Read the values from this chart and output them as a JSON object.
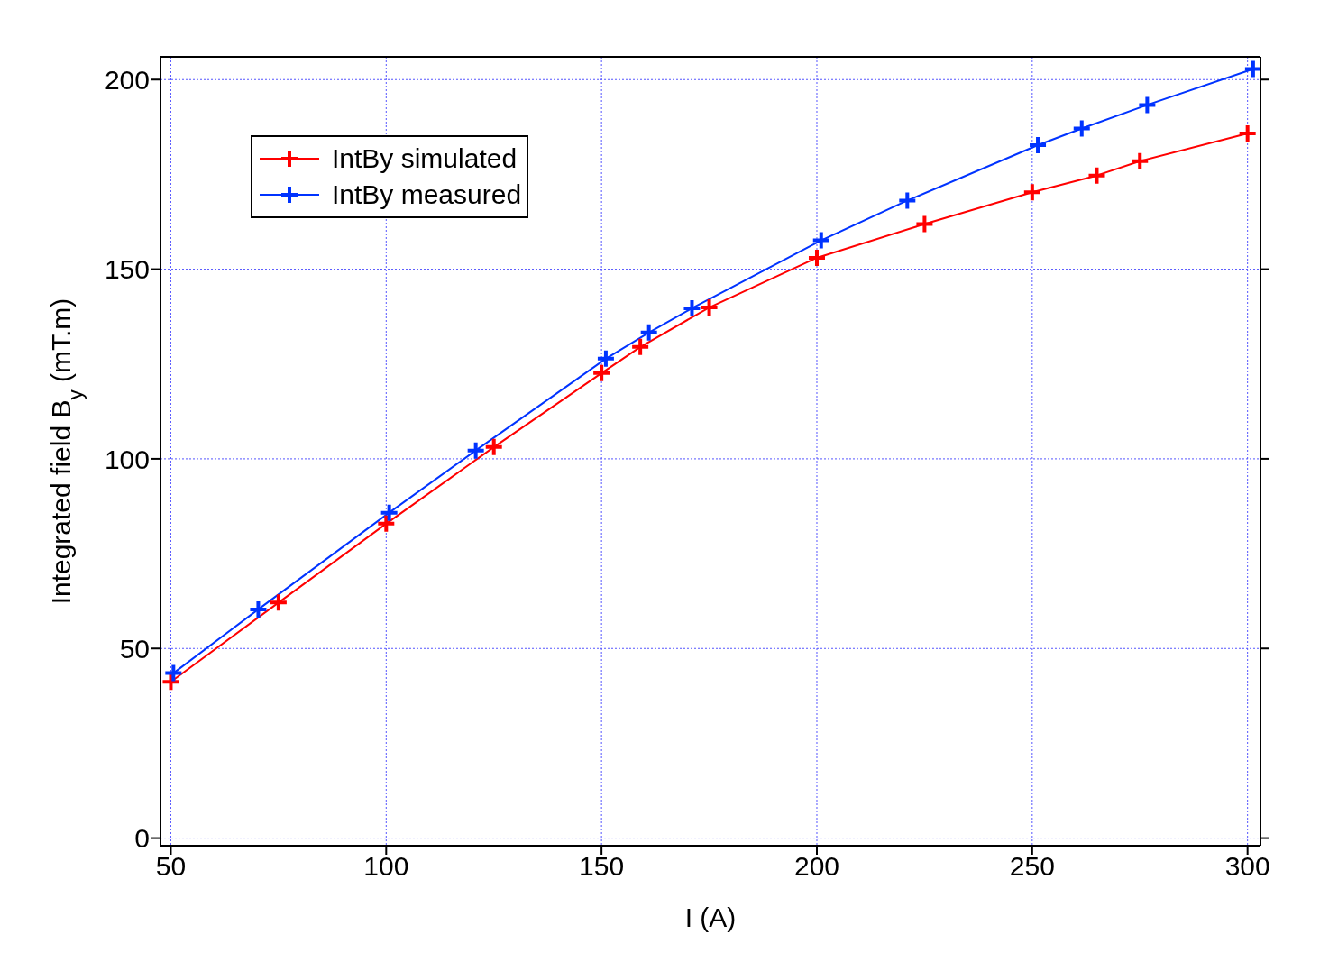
{
  "chart_data": {
    "type": "line",
    "xlabel": "I (A)",
    "ylabel": "Integrated field B$_{y}$ (mT.m)",
    "xlim": [
      47.6,
      303
    ],
    "ylim": [
      -2,
      206
    ],
    "xticks": [
      50,
      100,
      150,
      200,
      250,
      300
    ],
    "yticks": [
      0,
      50,
      100,
      150,
      200
    ],
    "grid": true,
    "legend": "top left",
    "marker": "cross",
    "line_style": "solid",
    "series": [
      {
        "name": "IntBy simulated",
        "color": "#ff0000",
        "x": [
          50,
          75,
          100,
          125,
          150,
          159,
          175,
          200,
          225,
          250,
          265,
          275,
          300
        ],
        "values": [
          41.2,
          62.1,
          82.9,
          103.1,
          122.6,
          129.5,
          139.9,
          153,
          161.9,
          170.3,
          174.7,
          178.5,
          185.8
        ]
      },
      {
        "name": "IntBy measured",
        "color": "#0033ff",
        "x": [
          50.6,
          70.3,
          100.7,
          120.8,
          151,
          161,
          171,
          201,
          221,
          251.3,
          261.5,
          276.7,
          301.3
        ],
        "values": [
          43.5,
          60.3,
          85.8,
          102.2,
          126.4,
          133.3,
          139.7,
          157.6,
          168.1,
          182.7,
          187.1,
          193.3,
          202.8
        ]
      }
    ]
  }
}
